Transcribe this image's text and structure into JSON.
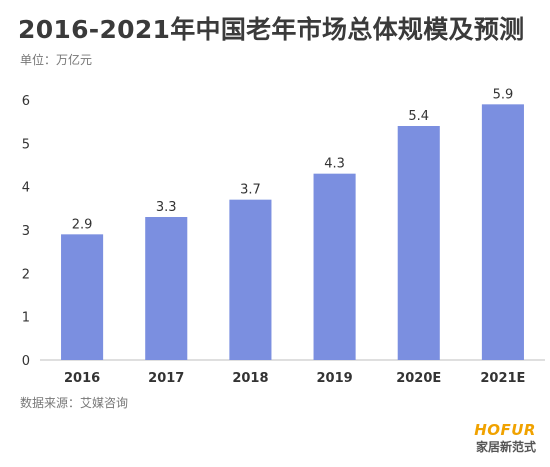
{
  "title": "2016-2021年中国老年市场总体规模及预测",
  "unit_label": "单位：万亿元",
  "source_label": "数据来源：艾媒咨询",
  "logo": {
    "top": "HOFUR",
    "bottom": "家居新范式"
  },
  "colors": {
    "bar": "#7b8fe0",
    "axis": "#bfbfbf",
    "text": "#3a3a3a",
    "logo": "#f0a200"
  },
  "chart_data": {
    "type": "bar",
    "categories": [
      "2016",
      "2017",
      "2018",
      "2019",
      "2020E",
      "2021E"
    ],
    "values": [
      2.9,
      3.3,
      3.7,
      4.3,
      5.4,
      5.9
    ],
    "title": "2016-2021年中国老年市场总体规模及预测",
    "ylim": [
      0,
      6
    ],
    "yticks": [
      0,
      1,
      2,
      3,
      4,
      5,
      6
    ],
    "grid": false,
    "legend": "none"
  }
}
